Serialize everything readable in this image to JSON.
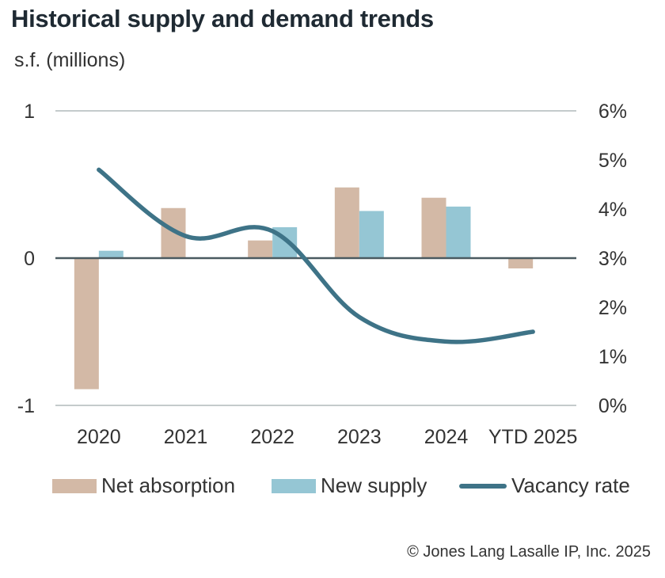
{
  "title": "Historical supply and demand trends",
  "subtitle": "s.f. (millions)",
  "footer": "© Jones Lang Lasalle IP, Inc. 2025",
  "colors": {
    "net_absorption": "#d3b9a6",
    "new_supply": "#95c6d4",
    "vacancy_rate": "#3e7387",
    "grid": "#c4cbcc",
    "zero_line": "#4a5a60"
  },
  "chart_data": {
    "type": "bar",
    "categories": [
      "2020",
      "2021",
      "2022",
      "2023",
      "2024",
      "YTD 2025"
    ],
    "series": [
      {
        "name": "Net absorption",
        "type": "bar",
        "axis": "left",
        "values": [
          -0.89,
          0.34,
          0.12,
          0.48,
          0.41,
          -0.07
        ]
      },
      {
        "name": "New supply",
        "type": "bar",
        "axis": "left",
        "values": [
          0.05,
          0.0,
          0.21,
          0.32,
          0.35,
          0.0
        ]
      },
      {
        "name": "Vacancy rate",
        "type": "line",
        "axis": "right",
        "unit": "%",
        "values": [
          4.8,
          3.45,
          3.55,
          1.8,
          1.3,
          1.5
        ]
      }
    ],
    "ylim": [
      -1,
      1
    ],
    "y_ticks": [
      "1",
      "0",
      "-1"
    ],
    "y2lim": [
      0,
      6
    ],
    "y2_ticks": [
      "6%",
      "5%",
      "4%",
      "3%",
      "2%",
      "1%",
      "0%"
    ],
    "grid": true,
    "legend_position": "bottom"
  }
}
